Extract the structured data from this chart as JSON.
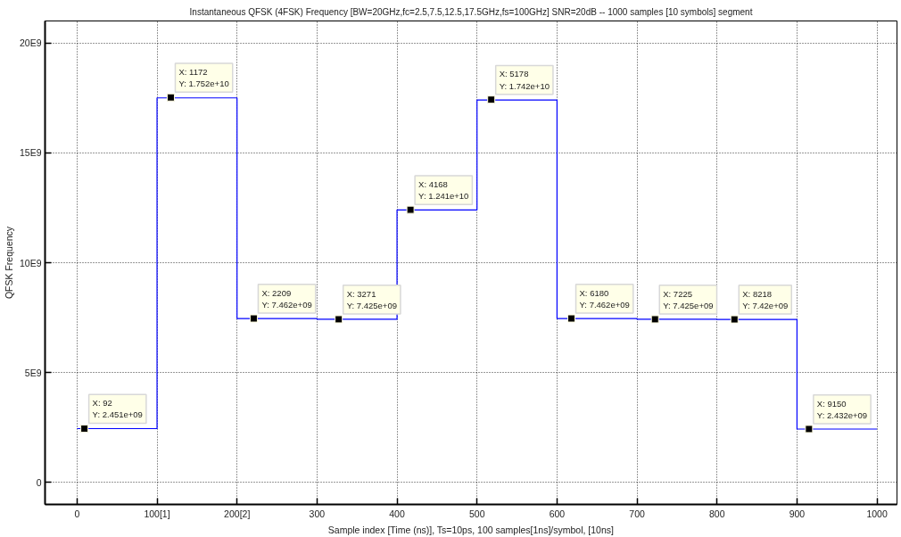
{
  "chart_data": {
    "type": "step",
    "title": "Instantaneous QFSK (4FSK) Frequency [BW=20GHz,fc=2.5,7.5,12.5,17.5GHz,fs=100GHz] SNR=20dB -- 1000 samples [10 symbols] segment",
    "xlabel": "Sample index [Time (ns)], Ts=10ps, 100 samples[1ns]/symbol, [10ns]",
    "ylabel": "QFSK Frequency",
    "xlim": [
      -40,
      1025
    ],
    "xticks": [
      0,
      {
        "value": 100,
        "label": "100[1]"
      },
      {
        "value": 200,
        "label": "200[2]"
      },
      300,
      400,
      500,
      600,
      700,
      800,
      900,
      1000
    ],
    "ylim": [
      -1000000000,
      21000000000
    ],
    "yticks": [
      0,
      {
        "value": 5000000000,
        "label": "5E9"
      },
      {
        "value": 10000000000,
        "label": "10E9"
      },
      {
        "value": 15000000000,
        "label": "15E9"
      },
      {
        "value": 20000000000,
        "label": "20E9"
      }
    ],
    "grid": true,
    "line_style": "solid",
    "series": [
      {
        "color": "#0000ff",
        "x": [
          0,
          100,
          200,
          300,
          400,
          500,
          600,
          700,
          800,
          900,
          1000
        ],
        "values": [
          2450000000,
          17500000000,
          7460000000,
          7430000000,
          12400000000,
          17400000000,
          7460000000,
          7430000000,
          7420000000,
          2430000000,
          2430000000
        ]
      },
      {
        "type": "scatter",
        "color": "#000000",
        "marker": "square",
        "x": [
          9.2,
          117.2,
          220.9,
          327.1,
          416.8,
          517.8,
          618.0,
          722.5,
          821.8,
          915.0
        ],
        "values": [
          2451000000,
          17520000000,
          7462000000,
          7425000000,
          12410000000,
          17420000000,
          7462000000,
          7425000000,
          7420000000,
          2432000000
        ],
        "value_labels": [
          "X: 92\nY: 2.451e+09",
          "X: 1172\nY: 1.752e+10",
          "X: 2209\nY: 7.462e+09",
          "X: 3271\nY: 7.425e+09",
          "X: 4168\nY: 1.241e+10",
          "X: 5178\nY: 1.742e+10",
          "X: 6180\nY: 7.462e+09",
          "X: 7225\nY: 7.425e+09",
          "X: 8218\nY: 7.42e+09",
          "X: 9150\nY: 2.432e+09"
        ]
      }
    ]
  }
}
